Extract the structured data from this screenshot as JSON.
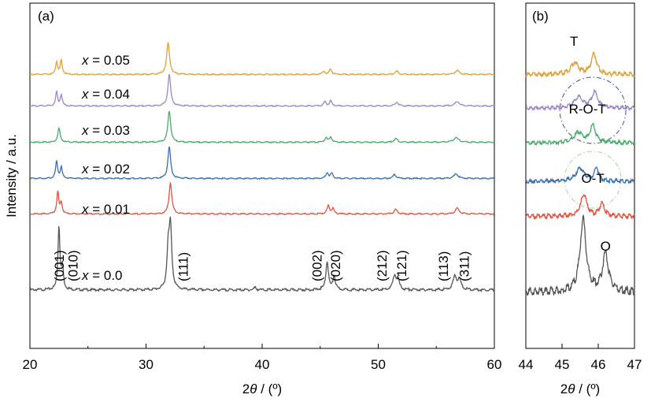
{
  "chart_data": [
    {
      "type": "line",
      "panel_label": "(a)",
      "xlabel_parts": [
        "2",
        "θ",
        " / (º)"
      ],
      "ylabel": "Intensity / a.u.",
      "xlim": [
        20,
        60
      ],
      "xticks": [
        "20",
        "30",
        "40",
        "50",
        "60"
      ],
      "y_ticks_shown": false,
      "grid": false,
      "legend": "none",
      "series": [
        {
          "name": "x = 0.0",
          "label_prefix": "x",
          "label_value": " = 0.0",
          "color": "#555555",
          "offset": 0,
          "peaks": [
            [
              22.5,
              1.0,
              0.1
            ],
            [
              22.8,
              0.35,
              0.1
            ],
            [
              32.1,
              1.0,
              0.14
            ],
            [
              31.9,
              0.55,
              0.12
            ],
            [
              45.6,
              0.45,
              0.13
            ],
            [
              46.2,
              0.22,
              0.12
            ],
            [
              51.4,
              0.22,
              0.16
            ],
            [
              51.7,
              0.16,
              0.14
            ],
            [
              56.6,
              0.22,
              0.18
            ],
            [
              57.0,
              0.16,
              0.16
            ],
            [
              39.4,
              0.04,
              0.12
            ]
          ]
        },
        {
          "name": "x = 0.01",
          "label_prefix": "x",
          "label_value": " = 0.01",
          "color": "#e3533f",
          "offset": 1,
          "peaks": [
            [
              22.4,
              0.7,
              0.1
            ],
            [
              22.7,
              0.35,
              0.1
            ],
            [
              32.1,
              1.0,
              0.14
            ],
            [
              45.7,
              0.26,
              0.13
            ],
            [
              46.1,
              0.16,
              0.12
            ],
            [
              51.5,
              0.14,
              0.16
            ],
            [
              56.8,
              0.18,
              0.2
            ]
          ]
        },
        {
          "name": "x = 0.02",
          "label_prefix": "x",
          "label_value": " = 0.02",
          "color": "#3a6fb0",
          "offset": 2,
          "peaks": [
            [
              22.3,
              0.55,
              0.1
            ],
            [
              22.7,
              0.35,
              0.1
            ],
            [
              32.0,
              1.0,
              0.14
            ],
            [
              45.6,
              0.18,
              0.13
            ],
            [
              46.0,
              0.16,
              0.12
            ],
            [
              51.4,
              0.12,
              0.16
            ],
            [
              56.7,
              0.14,
              0.22
            ]
          ]
        },
        {
          "name": "x = 0.03",
          "label_prefix": "x",
          "label_value": " = 0.03",
          "color": "#4aab6a",
          "offset": 3,
          "peaks": [
            [
              22.5,
              0.45,
              0.12
            ],
            [
              32.0,
              1.0,
              0.14
            ],
            [
              45.5,
              0.14,
              0.13
            ],
            [
              45.9,
              0.17,
              0.12
            ],
            [
              51.5,
              0.12,
              0.16
            ],
            [
              56.7,
              0.15,
              0.24
            ]
          ]
        },
        {
          "name": "x = 0.04",
          "label_prefix": "x",
          "label_value": " = 0.04",
          "color": "#9a88c8",
          "offset": 4,
          "peaks": [
            [
              22.3,
              0.45,
              0.1
            ],
            [
              22.7,
              0.35,
              0.1
            ],
            [
              32.0,
              1.0,
              0.14
            ],
            [
              45.4,
              0.13,
              0.13
            ],
            [
              45.9,
              0.16,
              0.12
            ],
            [
              51.6,
              0.12,
              0.16
            ],
            [
              56.8,
              0.14,
              0.22
            ]
          ]
        },
        {
          "name": "x = 0.05",
          "label_prefix": "x",
          "label_value": " = 0.05",
          "color": "#e0a23a",
          "offset": 5,
          "peaks": [
            [
              22.3,
              0.4,
              0.1
            ],
            [
              22.7,
              0.45,
              0.1
            ],
            [
              31.9,
              1.0,
              0.15
            ],
            [
              45.3,
              0.1,
              0.13
            ],
            [
              45.9,
              0.17,
              0.12
            ],
            [
              51.6,
              0.1,
              0.16
            ],
            [
              56.8,
              0.12,
              0.22
            ]
          ]
        }
      ],
      "annotations": [
        {
          "text": "(001)",
          "x": 22.5
        },
        {
          "text": "(010)",
          "x": 23.7
        },
        {
          "text": "(111)",
          "x": 33.2
        },
        {
          "text": "(002)",
          "x": 44.7
        },
        {
          "text": "(020)",
          "x": 46.3
        },
        {
          "text": "(212)",
          "x": 50.3
        },
        {
          "text": "(121)",
          "x": 52.0
        },
        {
          "text": "(113)",
          "x": 55.6
        },
        {
          "text": "(311)",
          "x": 57.4
        }
      ]
    },
    {
      "type": "line",
      "panel_label": "(b)",
      "xlabel_parts": [
        "2",
        "θ",
        " / (º)"
      ],
      "xlim": [
        44,
        47
      ],
      "xticks": [
        "44",
        "45",
        "46",
        "47"
      ],
      "y_ticks_shown": false,
      "grid": false,
      "legend": "none",
      "series": [
        {
          "name": "x = 0.0",
          "color": "#555555",
          "offset": 0,
          "peaks": [
            [
              45.58,
              1.0,
              0.1
            ],
            [
              46.2,
              0.52,
              0.1
            ]
          ]
        },
        {
          "name": "x = 0.01",
          "color": "#e3533f",
          "offset": 1,
          "peaks": [
            [
              45.6,
              0.55,
              0.1
            ],
            [
              46.1,
              0.32,
              0.08
            ]
          ]
        },
        {
          "name": "x = 0.02",
          "color": "#3a6fb0",
          "offset": 2,
          "peaks": [
            [
              45.5,
              0.42,
              0.14
            ],
            [
              45.95,
              0.42,
              0.07
            ]
          ]
        },
        {
          "name": "x = 0.03",
          "color": "#4aab6a",
          "offset": 3,
          "peaks": [
            [
              45.45,
              0.33,
              0.13
            ],
            [
              45.85,
              0.55,
              0.09
            ]
          ]
        },
        {
          "name": "x = 0.04",
          "color": "#9a88c8",
          "offset": 4,
          "peaks": [
            [
              45.45,
              0.35,
              0.13
            ],
            [
              45.9,
              0.5,
              0.1
            ]
          ]
        },
        {
          "name": "x = 0.05",
          "color": "#e0a23a",
          "offset": 5,
          "peaks": [
            [
              45.35,
              0.3,
              0.12
            ],
            [
              45.88,
              0.52,
              0.09
            ]
          ]
        }
      ],
      "annotations": [
        {
          "text": "O",
          "x": 46.2
        },
        {
          "text": "O-T",
          "x": 45.85
        },
        {
          "text": "R-O-T",
          "x": 45.7
        },
        {
          "text": "T",
          "x": 45.33
        }
      ],
      "circles": [
        {
          "x": 45.85,
          "color": "#a8d8a8"
        },
        {
          "x": 45.85,
          "color": "#4f5fa8"
        }
      ]
    }
  ]
}
